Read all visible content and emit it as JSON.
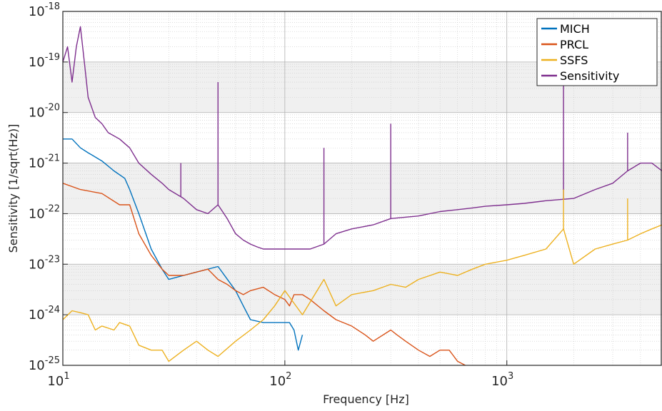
{
  "chart_data": {
    "type": "line",
    "xlabel": "Frequency [Hz]",
    "ylabel": "Sensitivity [1/sqrt(Hz)]",
    "xscale": "log",
    "yscale": "log",
    "xlim": [
      10,
      5000
    ],
    "ylim": [
      1e-25,
      1e-18
    ],
    "grid": "on (major and minor)",
    "legend_position": "top-right",
    "x_ticks": [
      {
        "base": "10",
        "exp": "1",
        "value": 10
      },
      {
        "base": "10",
        "exp": "2",
        "value": 100
      },
      {
        "base": "10",
        "exp": "3",
        "value": 1000
      }
    ],
    "y_ticks": [
      {
        "base": "10",
        "exp": "-25",
        "value": 1e-25
      },
      {
        "base": "10",
        "exp": "-24",
        "value": 1e-24
      },
      {
        "base": "10",
        "exp": "-23",
        "value": 1e-23
      },
      {
        "base": "10",
        "exp": "-22",
        "value": 1e-22
      },
      {
        "base": "10",
        "exp": "-21",
        "value": 1e-21
      },
      {
        "base": "10",
        "exp": "-20",
        "value": 1e-20
      },
      {
        "base": "10",
        "exp": "-19",
        "value": 1e-19
      },
      {
        "base": "10",
        "exp": "-18",
        "value": 1e-18
      }
    ],
    "series": [
      {
        "name": "MICH",
        "color": "#0072BD",
        "x": [
          10,
          11,
          12,
          13,
          15,
          17,
          19,
          20,
          22,
          25,
          28,
          30,
          35,
          40,
          50,
          60,
          65,
          70,
          80,
          90,
          100,
          105,
          110,
          115,
          120
        ],
        "y": [
          3e-21,
          3e-21,
          2e-21,
          1.6e-21,
          1.1e-21,
          7e-22,
          5e-22,
          3e-22,
          1e-22,
          2e-23,
          8e-24,
          5e-24,
          6e-24,
          7e-24,
          9e-24,
          3e-24,
          1.5e-24,
          8e-25,
          7e-25,
          7e-25,
          7e-25,
          7e-25,
          5e-25,
          2e-25,
          4e-25
        ]
      },
      {
        "name": "PRCL",
        "color": "#D95319",
        "x": [
          10,
          12,
          15,
          18,
          20,
          22,
          25,
          28,
          30,
          35,
          40,
          45,
          50,
          55,
          60,
          65,
          70,
          80,
          90,
          100,
          105,
          110,
          120,
          130,
          150,
          170,
          200,
          230,
          250,
          300,
          320,
          350,
          400,
          450,
          500,
          550,
          600,
          650
        ],
        "y": [
          4e-22,
          3e-22,
          2.5e-22,
          1.5e-22,
          1.5e-22,
          4e-23,
          1.5e-23,
          8e-24,
          6e-24,
          6e-24,
          7e-24,
          8e-24,
          5e-24,
          4e-24,
          3e-24,
          2.5e-24,
          3e-24,
          3.5e-24,
          2.5e-24,
          2e-24,
          1.5e-24,
          2.5e-24,
          2.5e-24,
          2e-24,
          1.2e-24,
          8e-25,
          6e-25,
          4e-25,
          3e-25,
          5e-25,
          4e-25,
          3e-25,
          2e-25,
          1.5e-25,
          2e-25,
          2e-25,
          1.2e-25,
          1e-25
        ]
      },
      {
        "name": "SSFS",
        "color": "#EDB120",
        "x": [
          10,
          11,
          12,
          13,
          14,
          15,
          17,
          18,
          20,
          22,
          25,
          28,
          30,
          35,
          40,
          45,
          50,
          60,
          70,
          80,
          90,
          100,
          120,
          150,
          170,
          200,
          250,
          300,
          350,
          400,
          500,
          600,
          700,
          800,
          1000,
          1200,
          1500,
          1800,
          2000,
          2500,
          3000,
          3500,
          4000,
          4500,
          5000
        ],
        "y": [
          8e-25,
          1.2e-24,
          1.1e-24,
          1e-24,
          5e-25,
          6e-25,
          5e-25,
          7e-25,
          6e-25,
          2.5e-25,
          2e-25,
          2e-25,
          1.2e-25,
          2e-25,
          3e-25,
          2e-25,
          1.5e-25,
          3e-25,
          5e-25,
          8e-25,
          1.5e-24,
          3e-24,
          1e-24,
          5e-24,
          1.5e-24,
          2.5e-24,
          3e-24,
          4e-24,
          3.5e-24,
          5e-24,
          7e-24,
          6e-24,
          8e-24,
          1e-23,
          1.2e-23,
          1.5e-23,
          2e-23,
          5e-23,
          1e-23,
          2e-23,
          2.5e-23,
          3e-23,
          4e-23,
          5e-23,
          6e-23
        ]
      },
      {
        "name": "Sensitivity",
        "color": "#7E2F8E",
        "x": [
          10,
          10.5,
          11,
          11.5,
          12,
          12.5,
          13,
          14,
          15,
          16,
          18,
          20,
          22,
          25,
          28,
          30,
          35,
          40,
          45,
          50,
          55,
          60,
          65,
          70,
          75,
          80,
          85,
          90,
          95,
          100,
          110,
          120,
          130,
          150,
          170,
          200,
          250,
          300,
          400,
          500,
          600,
          700,
          800,
          1000,
          1200,
          1500,
          2000,
          2500,
          3000,
          3500,
          4000,
          4500,
          5000
        ],
        "y": [
          1e-19,
          2e-19,
          4e-20,
          2e-19,
          5e-19,
          1e-19,
          2e-20,
          8e-21,
          6e-21,
          4e-21,
          3e-21,
          2e-21,
          1e-21,
          6e-22,
          4e-22,
          3e-22,
          2e-22,
          1.2e-22,
          1e-22,
          1.5e-22,
          8e-23,
          4e-23,
          3e-23,
          2.5e-23,
          2.2e-23,
          2e-23,
          2e-23,
          2e-23,
          2e-23,
          2e-23,
          2e-23,
          2e-23,
          2e-23,
          2.5e-23,
          4e-23,
          5e-23,
          6e-23,
          8e-23,
          9e-23,
          1.1e-22,
          1.2e-22,
          1.3e-22,
          1.4e-22,
          1.5e-22,
          1.6e-22,
          1.8e-22,
          2e-22,
          3e-22,
          4e-22,
          7e-22,
          1e-21,
          1e-21,
          7e-22
        ]
      }
    ],
    "peaks": [
      {
        "series": "Sensitivity",
        "x": 50,
        "y": 4e-20
      },
      {
        "series": "Sensitivity",
        "x": 34,
        "y": 1e-21
      },
      {
        "series": "Sensitivity",
        "x": 150,
        "y": 2e-21
      },
      {
        "series": "Sensitivity",
        "x": 300,
        "y": 6e-21
      },
      {
        "series": "Sensitivity",
        "x": 1800,
        "y": 5e-20
      },
      {
        "series": "Sensitivity",
        "x": 3500,
        "y": 4e-21
      },
      {
        "series": "SSFS",
        "x": 3500,
        "y": 2e-22
      },
      {
        "series": "SSFS",
        "x": 1800,
        "y": 3e-22
      }
    ]
  }
}
